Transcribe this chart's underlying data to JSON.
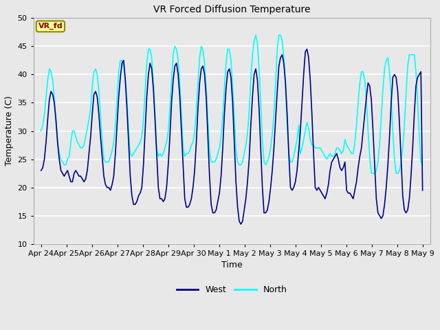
{
  "title": "VR Forced Diffusion Temperature",
  "xlabel": "Time",
  "ylabel": "Temperature (C)",
  "ylim": [
    10,
    50
  ],
  "annotation_label": "VR_fd",
  "west_color": "#00008B",
  "north_color": "#00FFFF",
  "background_color": "#E8E8E8",
  "plot_bg_color": "#E8E8E8",
  "grid_color": "#FFFFFF",
  "x_tick_labels": [
    "Apr 24",
    "Apr 25",
    "Apr 26",
    "Apr 27",
    "Apr 28",
    "Apr 29",
    "Apr 30",
    "May 1",
    "May 2",
    "May 3",
    "May 4",
    "May 5",
    "May 6",
    "May 7",
    "May 8",
    "May 9"
  ],
  "west_data": [
    23.0,
    23.5,
    25.0,
    28.0,
    32.0,
    35.5,
    37.0,
    36.5,
    35.0,
    32.0,
    28.0,
    25.0,
    23.0,
    22.5,
    22.0,
    22.5,
    23.0,
    22.0,
    21.0,
    21.0,
    22.5,
    23.0,
    22.5,
    22.0,
    22.0,
    21.5,
    21.0,
    21.5,
    23.0,
    26.0,
    29.0,
    33.0,
    36.5,
    37.0,
    36.0,
    33.0,
    29.0,
    25.5,
    22.0,
    20.5,
    20.0,
    20.0,
    19.5,
    20.5,
    22.0,
    26.0,
    31.0,
    36.0,
    39.5,
    42.0,
    42.5,
    39.0,
    34.0,
    28.0,
    22.0,
    18.5,
    17.0,
    17.0,
    17.5,
    18.5,
    19.0,
    20.0,
    24.0,
    30.0,
    36.0,
    40.0,
    42.0,
    41.0,
    37.5,
    32.0,
    26.0,
    20.0,
    18.0,
    18.0,
    17.5,
    18.0,
    20.0,
    24.0,
    29.0,
    35.0,
    39.0,
    41.5,
    42.0,
    40.0,
    36.0,
    30.0,
    24.0,
    18.0,
    16.5,
    16.5,
    17.0,
    18.0,
    20.0,
    23.0,
    28.0,
    34.0,
    38.5,
    41.0,
    41.5,
    40.0,
    36.0,
    29.0,
    22.0,
    17.0,
    15.5,
    15.5,
    16.0,
    17.5,
    19.0,
    22.0,
    27.0,
    33.0,
    37.5,
    40.5,
    41.0,
    39.5,
    35.0,
    28.0,
    21.0,
    16.5,
    14.0,
    13.5,
    14.0,
    16.0,
    18.0,
    21.0,
    25.0,
    31.0,
    36.0,
    40.0,
    41.0,
    39.0,
    34.0,
    27.0,
    20.0,
    15.5,
    15.5,
    16.0,
    17.5,
    20.0,
    23.0,
    27.0,
    32.0,
    37.0,
    41.5,
    43.0,
    43.5,
    42.0,
    38.5,
    33.0,
    26.0,
    20.0,
    19.5,
    20.0,
    21.0,
    23.0,
    26.5,
    30.0,
    35.0,
    40.0,
    44.0,
    44.5,
    43.0,
    39.0,
    33.0,
    26.0,
    20.0,
    19.5,
    20.0,
    19.5,
    19.0,
    18.5,
    18.0,
    19.0,
    20.5,
    23.0,
    24.5,
    25.0,
    25.5,
    26.0,
    25.0,
    23.5,
    23.0,
    23.5,
    24.5,
    19.5,
    19.0,
    19.0,
    18.5,
    18.0,
    19.5,
    21.0,
    23.5,
    25.5,
    27.0,
    30.0,
    33.0,
    36.0,
    38.5,
    38.0,
    35.5,
    30.0,
    24.0,
    18.0,
    15.5,
    15.0,
    14.5,
    15.0,
    17.0,
    20.0,
    24.0,
    29.0,
    35.0,
    39.5,
    40.0,
    39.5,
    37.0,
    31.5,
    25.0,
    18.5,
    16.0,
    15.5,
    16.0,
    18.0,
    22.0,
    27.0,
    33.0,
    38.0,
    39.5,
    40.0,
    40.5,
    19.5
  ],
  "north_data": [
    30.0,
    31.0,
    33.0,
    36.0,
    39.0,
    41.0,
    40.5,
    39.0,
    36.0,
    31.5,
    28.0,
    26.0,
    25.0,
    24.5,
    24.0,
    24.0,
    25.0,
    25.5,
    28.0,
    30.0,
    30.0,
    29.0,
    28.0,
    27.5,
    27.0,
    27.0,
    27.5,
    29.0,
    30.5,
    32.0,
    34.0,
    38.0,
    40.5,
    41.0,
    40.0,
    37.0,
    33.0,
    28.5,
    25.0,
    24.5,
    24.5,
    24.5,
    25.5,
    26.5,
    28.0,
    31.0,
    35.5,
    40.5,
    42.5,
    42.5,
    41.5,
    39.5,
    35.5,
    30.0,
    26.0,
    25.5,
    26.0,
    26.5,
    27.0,
    27.5,
    28.0,
    29.0,
    32.0,
    37.0,
    42.0,
    44.5,
    44.5,
    43.0,
    38.5,
    33.0,
    27.0,
    25.5,
    26.0,
    25.5,
    26.0,
    27.0,
    28.0,
    30.0,
    34.0,
    39.0,
    43.5,
    45.0,
    44.5,
    42.5,
    38.5,
    33.0,
    27.0,
    25.5,
    26.0,
    26.0,
    26.5,
    27.5,
    28.0,
    30.0,
    33.5,
    38.5,
    43.0,
    45.0,
    44.5,
    42.0,
    37.5,
    32.0,
    26.5,
    24.5,
    24.5,
    24.5,
    25.0,
    26.0,
    27.0,
    29.0,
    32.5,
    37.5,
    42.0,
    44.5,
    44.5,
    42.5,
    38.0,
    32.5,
    26.5,
    24.5,
    24.0,
    24.0,
    24.5,
    26.0,
    27.5,
    29.5,
    33.5,
    39.0,
    43.5,
    46.0,
    47.0,
    45.5,
    41.0,
    35.0,
    28.5,
    24.5,
    24.0,
    24.5,
    25.5,
    27.0,
    29.5,
    33.0,
    38.5,
    44.5,
    47.0,
    47.0,
    46.0,
    43.0,
    38.0,
    31.5,
    26.0,
    24.5,
    24.5,
    25.5,
    27.0,
    28.5,
    31.0,
    26.0,
    27.0,
    28.5,
    30.0,
    31.5,
    30.5,
    28.5,
    27.5,
    27.5,
    27.0,
    27.0,
    27.0,
    27.0,
    26.5,
    26.0,
    25.5,
    25.0,
    25.5,
    26.0,
    25.5,
    25.5,
    26.0,
    27.0,
    27.0,
    26.5,
    26.0,
    26.5,
    28.5,
    27.5,
    27.0,
    26.5,
    26.0,
    26.0,
    28.0,
    31.0,
    35.0,
    38.5,
    40.5,
    40.5,
    39.0,
    35.5,
    30.0,
    25.5,
    22.5,
    22.5,
    22.5,
    23.0,
    24.5,
    27.5,
    32.5,
    37.5,
    41.0,
    42.5,
    43.0,
    40.5,
    36.0,
    30.0,
    25.0,
    22.5,
    22.5,
    23.0,
    24.5,
    27.0,
    31.0,
    36.5,
    41.5,
    43.5,
    43.5,
    43.5,
    43.5,
    40.5,
    35.5,
    29.0,
    24.5,
    24.0
  ]
}
